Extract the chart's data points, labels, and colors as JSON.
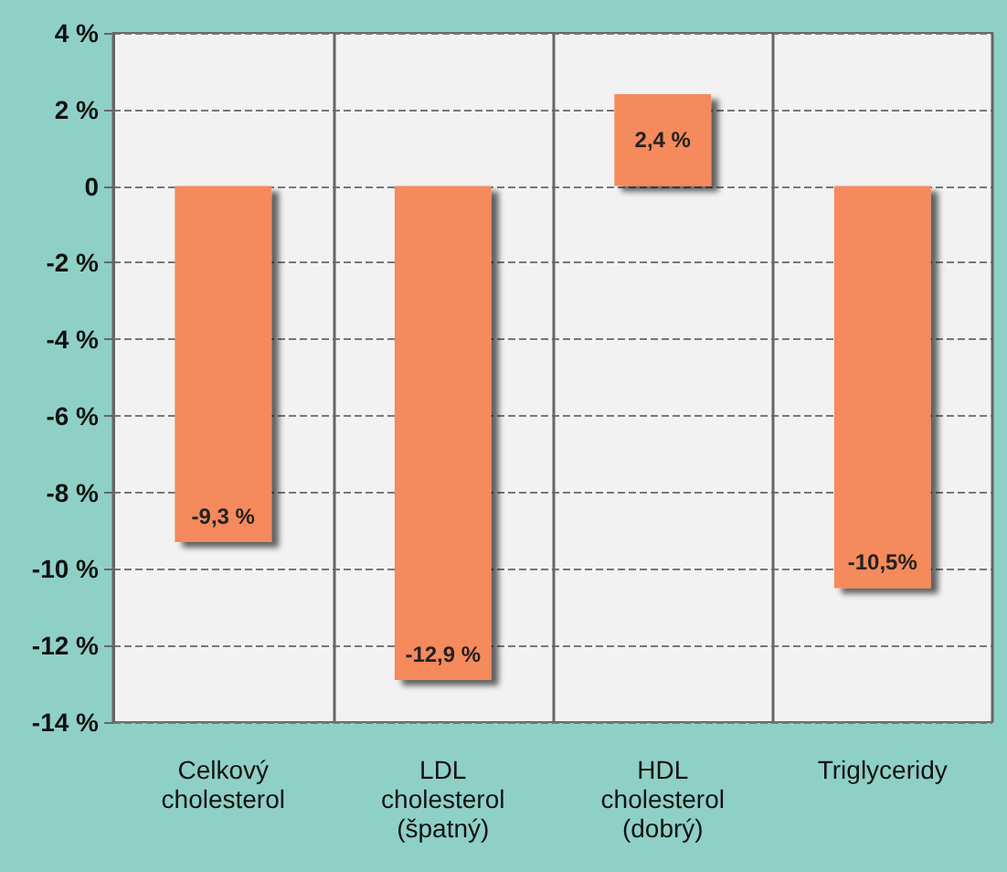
{
  "chart_data": {
    "type": "bar",
    "categories": [
      "Celkový\ncholesterol",
      "LDL\ncholesterol\n(špatný)",
      "HDL\ncholesterol\n(dobrý)",
      "Triglyceridy"
    ],
    "values": [
      -9.3,
      -12.9,
      2.4,
      -10.5
    ],
    "value_labels": [
      "-9,3 %",
      "-12,9 %",
      "2,4 %",
      "-10,5%"
    ],
    "color": "#f58a5c",
    "ylim": [
      -14,
      4
    ],
    "yticks": [
      {
        "value": -14,
        "label": "-14 %"
      },
      {
        "value": -12,
        "label": "-12 %"
      },
      {
        "value": -10,
        "label": "-10 %"
      },
      {
        "value": -8,
        "label": "-8 %"
      },
      {
        "value": -6,
        "label": "-6 %"
      },
      {
        "value": -4,
        "label": "-4 %"
      },
      {
        "value": -2,
        "label": "-2 %"
      },
      0,
      {
        "value": 2,
        "label": "2 %"
      },
      {
        "value": 4,
        "label": "4 %"
      }
    ],
    "grid": true
  }
}
